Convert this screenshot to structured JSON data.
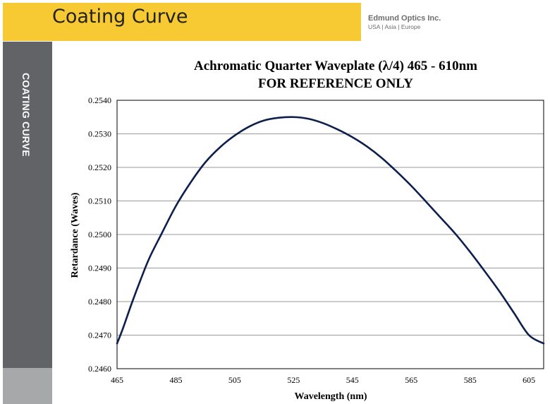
{
  "header": {
    "title": "Coating Curve",
    "brand_name": "Edmund Optics Inc.",
    "brand_regions": "USA | Asia | Europe"
  },
  "sidebar": {
    "label": "COATING CURVE"
  },
  "colors": {
    "banner": "#f7c932",
    "sidebar_dark": "#626366",
    "sidebar_light": "#a7a8aa",
    "line": "#0d1f4f",
    "grid": "#9a9a9a"
  },
  "chart_data": {
    "type": "line",
    "title": "Achromatic Quarter Waveplate (λ/4) 465 - 610nm",
    "subtitle": "FOR REFERENCE ONLY",
    "xlabel": "Wavelength (nm)",
    "ylabel": "Retardance (Waves)",
    "xlim": [
      465,
      610
    ],
    "ylim": [
      0.246,
      0.254
    ],
    "x_ticks": [
      465,
      485,
      505,
      525,
      545,
      565,
      585,
      605
    ],
    "y_ticks": [
      "0.2460",
      "0.2470",
      "0.2480",
      "0.2490",
      "0.2500",
      "0.2510",
      "0.2520",
      "0.2530",
      "0.2540"
    ],
    "grid": true,
    "legend": "none",
    "series": [
      {
        "x": [
          465,
          467,
          470,
          473,
          476,
          480,
          485,
          490,
          495,
          500,
          505,
          510,
          515,
          520,
          525,
          530,
          535,
          540,
          545,
          550,
          555,
          560,
          565,
          570,
          575,
          580,
          585,
          590,
          595,
          600,
          605,
          610
        ],
        "values": [
          0.24675,
          0.2472,
          0.24795,
          0.24865,
          0.2493,
          0.25,
          0.25085,
          0.25155,
          0.25215,
          0.2526,
          0.25295,
          0.25322,
          0.2534,
          0.25348,
          0.2535,
          0.25345,
          0.25332,
          0.25313,
          0.2529,
          0.25262,
          0.25228,
          0.25188,
          0.25145,
          0.25098,
          0.2505,
          0.25002,
          0.24948,
          0.2489,
          0.2483,
          0.24765,
          0.247,
          0.24675
        ]
      }
    ]
  }
}
